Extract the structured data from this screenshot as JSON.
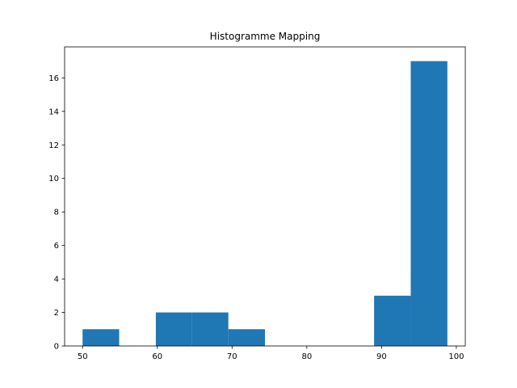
{
  "chart_data": {
    "type": "bar",
    "title": "Histogramme Mapping",
    "xlabel": "",
    "ylabel": "",
    "bar_color": "#1f77b4",
    "bins": [
      {
        "x0": 50.0,
        "x1": 54.9,
        "count": 1
      },
      {
        "x0": 54.9,
        "x1": 59.8,
        "count": 0
      },
      {
        "x0": 59.8,
        "x1": 64.6,
        "count": 2
      },
      {
        "x0": 64.6,
        "x1": 69.5,
        "count": 2
      },
      {
        "x0": 69.5,
        "x1": 74.4,
        "count": 1
      },
      {
        "x0": 74.4,
        "x1": 79.3,
        "count": 0
      },
      {
        "x0": 79.3,
        "x1": 84.2,
        "count": 0
      },
      {
        "x0": 84.2,
        "x1": 89.0,
        "count": 0
      },
      {
        "x0": 89.0,
        "x1": 93.9,
        "count": 3
      },
      {
        "x0": 93.9,
        "x1": 98.8,
        "count": 17
      }
    ],
    "xlim": [
      47.6,
      101.2
    ],
    "ylim": [
      0,
      17.85
    ],
    "xticks": [
      50,
      60,
      70,
      80,
      90,
      100
    ],
    "yticks": [
      0,
      2,
      4,
      6,
      8,
      10,
      12,
      14,
      16
    ],
    "grid": false,
    "legend": "none"
  }
}
